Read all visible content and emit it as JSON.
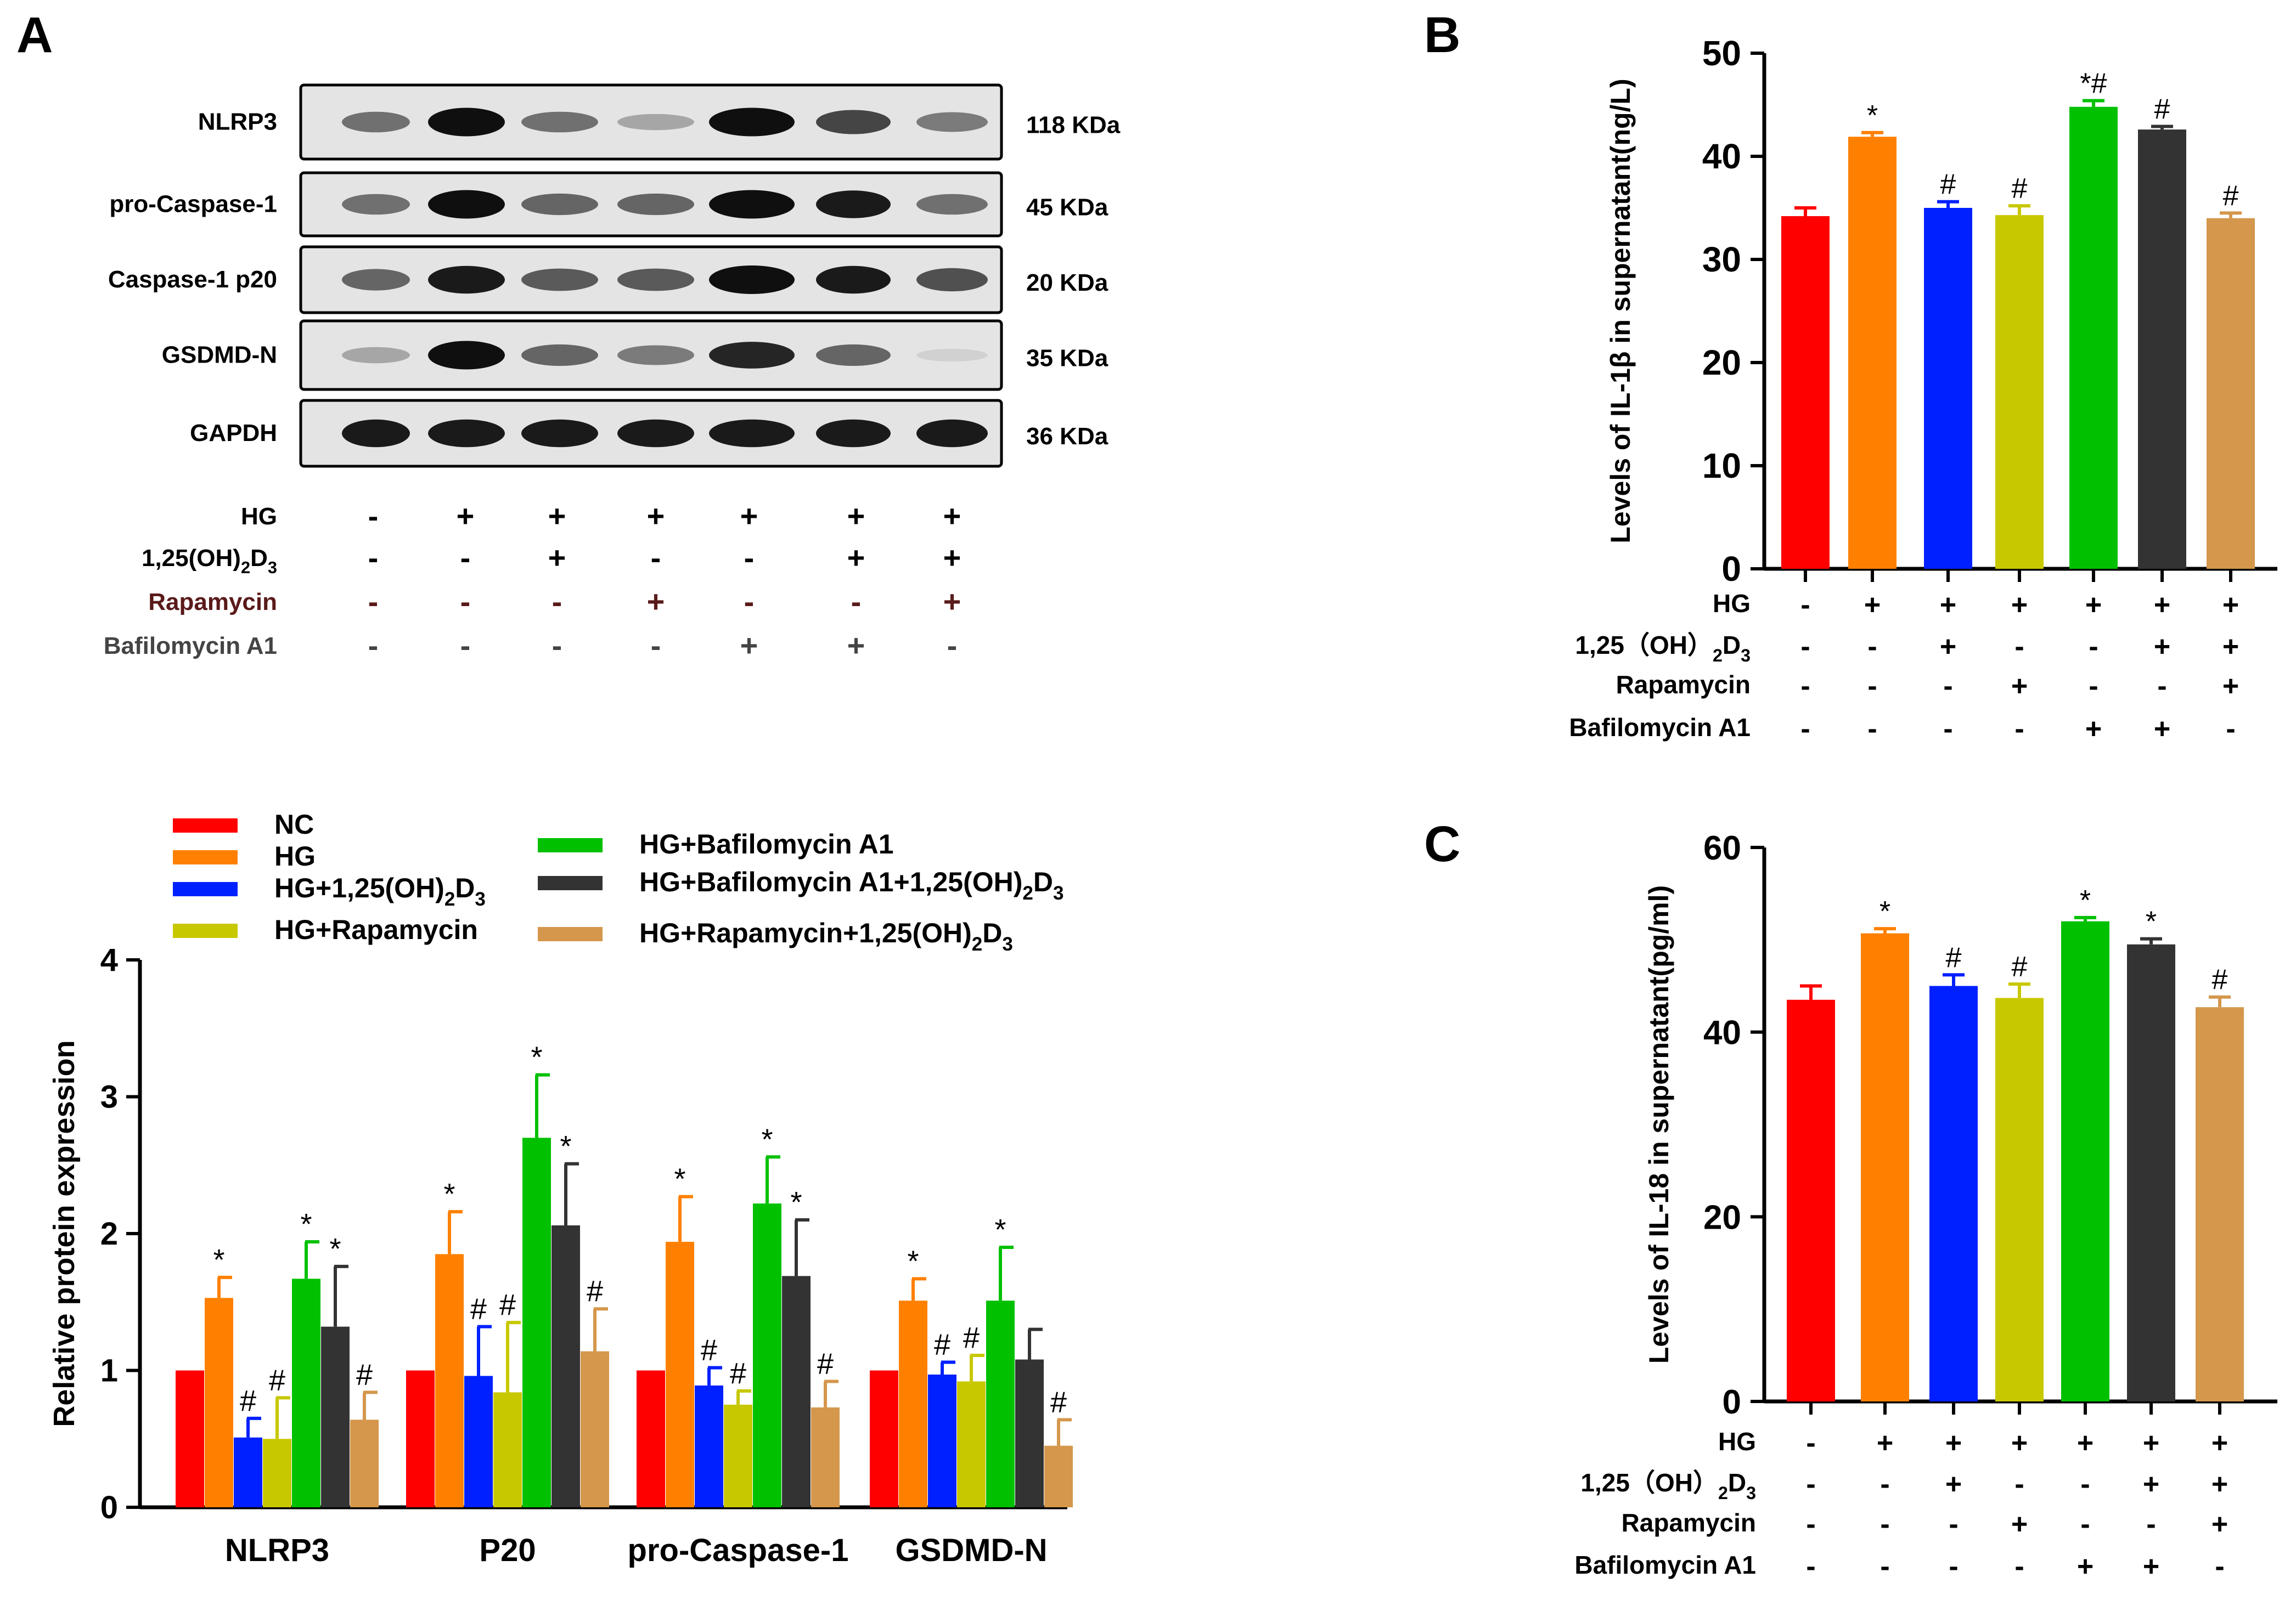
{
  "panels": {
    "A": "A",
    "B": "B",
    "C": "C"
  },
  "blot": {
    "proteins": [
      {
        "name": "NLRP3",
        "kda": "118 KDa"
      },
      {
        "name": "pro-Caspase-1",
        "kda": "45 KDa"
      },
      {
        "name": "Caspase-1 p20",
        "kda": "20 KDa"
      },
      {
        "name": "GSDMD-N",
        "kda": "35 KDa"
      },
      {
        "name": "GAPDH",
        "kda": "36 KDa"
      }
    ],
    "band_intensity": [
      [
        0.55,
        1.0,
        0.55,
        0.3,
        1.0,
        0.75,
        0.5
      ],
      [
        0.55,
        1.0,
        0.6,
        0.6,
        1.0,
        0.95,
        0.55
      ],
      [
        0.6,
        0.95,
        0.65,
        0.65,
        1.0,
        0.95,
        0.7
      ],
      [
        0.3,
        1.0,
        0.6,
        0.5,
        0.9,
        0.6,
        0.1
      ],
      [
        0.95,
        0.95,
        0.95,
        0.95,
        0.95,
        0.95,
        0.95
      ]
    ],
    "treatments": [
      {
        "name": "HG",
        "signs": [
          "-",
          "+",
          "+",
          "+",
          "+",
          "+",
          "+"
        ],
        "color": "#000000"
      },
      {
        "name": "1,25(OH)",
        "sub": "2",
        "name2": "D",
        "sub2": "3",
        "signs": [
          "-",
          "-",
          "+",
          "-",
          "-",
          "+",
          "+"
        ],
        "color": "#000000"
      },
      {
        "name": "Rapamycin",
        "signs": [
          "-",
          "-",
          "-",
          "+",
          "-",
          "-",
          "+"
        ],
        "color": "#5a1a1a"
      },
      {
        "name": "Bafilomycin A1",
        "signs": [
          "-",
          "-",
          "-",
          "-",
          "+",
          "+",
          "-"
        ],
        "color": "#444444"
      }
    ]
  },
  "colors": [
    "#ff0000",
    "#ff8000",
    "#0020ff",
    "#c8c800",
    "#00c000",
    "#333333",
    "#d4974c"
  ],
  "legend": [
    {
      "text": "NC"
    },
    {
      "text": "HG"
    },
    {
      "text": "HG+1,25(OH)",
      "sub": "2",
      "tail": "D",
      "sub2": "3"
    },
    {
      "text": "HG+Rapamycin"
    },
    {
      "text": "HG+Bafilomycin A1"
    },
    {
      "text": "HG+Bafilomycin A1+1,25(OH)",
      "sub": "2",
      "tail": "D",
      "sub2": "3"
    },
    {
      "text": "HG+Rapamycin+1,25(OH)",
      "sub": "2",
      "tail": "D",
      "sub2": "3"
    }
  ],
  "chart_data": [
    {
      "id": "A-bar",
      "type": "bar",
      "ylabel": "Relative protein expression",
      "ylim": [
        0,
        4
      ],
      "yticks": [
        "0",
        "1",
        "2",
        "3",
        "4"
      ],
      "categories": [
        "NLRP3",
        "P20",
        "pro-Caspase-1",
        "GSDMD-N"
      ],
      "values": [
        [
          1.0,
          1.53,
          0.51,
          0.5,
          1.67,
          1.32,
          0.64
        ],
        [
          1.0,
          1.85,
          0.96,
          0.84,
          2.7,
          2.06,
          1.14
        ],
        [
          1.0,
          1.94,
          0.89,
          0.75,
          2.22,
          1.69,
          0.73
        ],
        [
          1.0,
          1.51,
          0.97,
          0.92,
          1.51,
          1.08,
          0.45
        ]
      ],
      "errors": [
        [
          0,
          0.15,
          0.14,
          0.3,
          0.27,
          0.44,
          0.2
        ],
        [
          0,
          0.31,
          0.36,
          0.51,
          0.46,
          0.45,
          0.31
        ],
        [
          0,
          0.33,
          0.13,
          0.1,
          0.34,
          0.41,
          0.19
        ],
        [
          0,
          0.16,
          0.09,
          0.19,
          0.39,
          0.22,
          0.19
        ]
      ],
      "annotations": [
        [
          "",
          "*",
          "#",
          "#",
          "*",
          "*",
          "#"
        ],
        [
          "",
          "*",
          "#",
          "#",
          "*",
          "*",
          "#"
        ],
        [
          "",
          "*",
          "#",
          "#",
          "*",
          "*",
          "#"
        ],
        [
          "",
          "*",
          "#",
          "#",
          "*",
          "",
          "#"
        ]
      ]
    },
    {
      "id": "B",
      "type": "bar",
      "ylabel": "Levels of IL-1β in supernatant(ng/L)",
      "ylim": [
        0,
        50
      ],
      "yticks": [
        "0",
        "10",
        "20",
        "30",
        "40",
        "50"
      ],
      "values": [
        34.2,
        41.9,
        35.0,
        34.3,
        44.8,
        42.6,
        34.0
      ],
      "errors": [
        0.8,
        0.4,
        0.6,
        0.9,
        0.6,
        0.3,
        0.5
      ],
      "annotations": [
        "",
        "*",
        "#",
        "#",
        "*#",
        "#",
        "#"
      ],
      "treatments": [
        {
          "name": "HG",
          "signs": [
            "-",
            "+",
            "+",
            "+",
            "+",
            "+",
            "+"
          ]
        },
        {
          "name": "1,25（OH）",
          "sub": "2",
          "name2": "D",
          "sub2": "3",
          "signs": [
            "-",
            "-",
            "+",
            "-",
            "-",
            "+",
            "+"
          ]
        },
        {
          "name": "Rapamycin",
          "signs": [
            "-",
            "-",
            "-",
            "+",
            "-",
            "-",
            "+"
          ]
        },
        {
          "name": "Bafilomycin A1",
          "signs": [
            "-",
            "-",
            "-",
            "-",
            "+",
            "+",
            "-"
          ]
        }
      ]
    },
    {
      "id": "C",
      "type": "bar",
      "ylabel": "Levels of IL-18 in supernatant(pg/ml)",
      "ylim": [
        0,
        60
      ],
      "yticks": [
        "0",
        "20",
        "40",
        "60"
      ],
      "values": [
        43.5,
        50.7,
        45.0,
        43.7,
        52.0,
        49.5,
        42.7
      ],
      "errors": [
        1.5,
        0.5,
        1.2,
        1.5,
        0.4,
        0.6,
        1.1
      ],
      "annotations": [
        "",
        "*",
        "#",
        "#",
        "*",
        "*",
        "#"
      ],
      "treatments": [
        {
          "name": "HG",
          "signs": [
            "-",
            "+",
            "+",
            "+",
            "+",
            "+",
            "+"
          ]
        },
        {
          "name": "1,25（OH）",
          "sub": "2",
          "name2": "D",
          "sub2": "3",
          "signs": [
            "-",
            "-",
            "+",
            "-",
            "-",
            "+",
            "+"
          ]
        },
        {
          "name": "Rapamycin",
          "signs": [
            "-",
            "-",
            "-",
            "+",
            "-",
            "-",
            "+"
          ]
        },
        {
          "name": "Bafilomycin A1",
          "signs": [
            "-",
            "-",
            "-",
            "-",
            "+",
            "+",
            "-"
          ]
        }
      ]
    }
  ]
}
